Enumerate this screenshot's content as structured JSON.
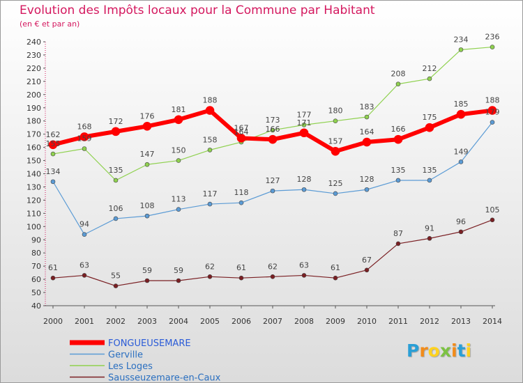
{
  "header": {
    "title": "Evolution des Impôts locaux pour la Commune par Habitant",
    "subtitle": "(en € et par an)"
  },
  "logo": {
    "letters": [
      "P",
      "r",
      "o",
      "x",
      "i",
      "t",
      "i"
    ],
    "colors": [
      "#2a9fd6",
      "#f28c1a",
      "#ffd21f",
      "#7cc242",
      "#f28c1a",
      "#2a9fd6",
      "#ffd21f"
    ]
  },
  "chart_data": {
    "type": "line",
    "x": [
      2000,
      2001,
      2002,
      2003,
      2004,
      2005,
      2006,
      2007,
      2008,
      2009,
      2010,
      2011,
      2012,
      2013,
      2014
    ],
    "ylim": [
      40,
      240
    ],
    "yticks": [
      40,
      50,
      60,
      70,
      80,
      90,
      100,
      110,
      120,
      130,
      140,
      150,
      160,
      170,
      180,
      190,
      200,
      210,
      220,
      230,
      240
    ],
    "grid": false,
    "legend_position": "bottom-left",
    "series": [
      {
        "name": "FONGUEUSEMARE",
        "color": "#ff0000",
        "highlight": true,
        "values": [
          162,
          168,
          172,
          176,
          181,
          188,
          167,
          166,
          171,
          157,
          164,
          166,
          175,
          185,
          188
        ]
      },
      {
        "name": "Gerville",
        "color": "#5b9bd5",
        "values": [
          134,
          94,
          106,
          108,
          113,
          117,
          118,
          127,
          128,
          125,
          128,
          135,
          135,
          149,
          179
        ]
      },
      {
        "name": "Les Loges",
        "color": "#8fd14f",
        "values": [
          155,
          159,
          135,
          147,
          150,
          158,
          164,
          173,
          177,
          180,
          183,
          208,
          212,
          234,
          236
        ]
      },
      {
        "name": "Sausseuzemare-en-Caux",
        "color": "#7a1f23",
        "values": [
          61,
          63,
          55,
          59,
          59,
          62,
          61,
          62,
          63,
          61,
          67,
          87,
          91,
          96,
          105
        ]
      }
    ]
  }
}
